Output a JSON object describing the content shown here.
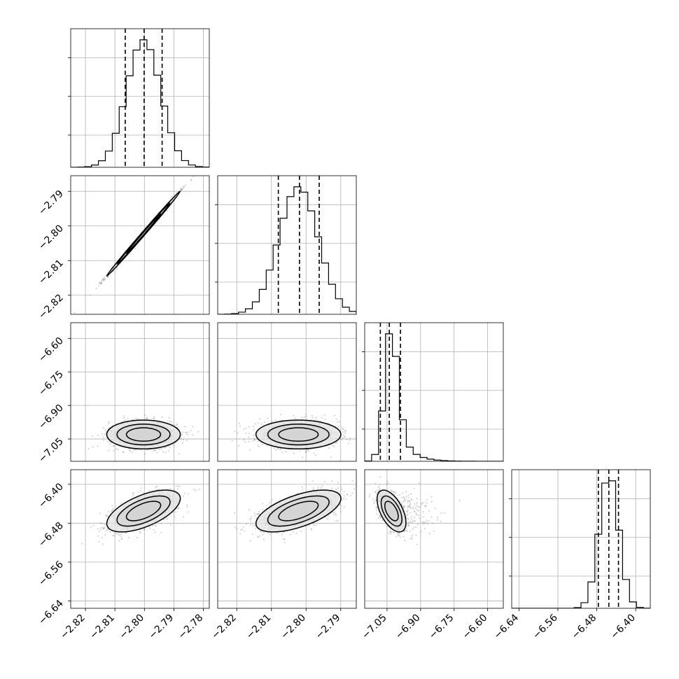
{
  "chart_data": {
    "type": "corner",
    "grid": true,
    "parameters": [
      {
        "axis_range": [
          -2.825,
          -2.778
        ],
        "ticks": [
          -2.82,
          -2.81,
          -2.8,
          -2.79,
          -2.78
        ],
        "tick_labels": [
          "−2.82",
          "−2.81",
          "−2.80",
          "−2.79",
          "−2.78"
        ],
        "mean": -2.8003,
        "sd": 0.0058,
        "quantiles": [
          -2.8065,
          -2.8001,
          -2.794
        ]
      },
      {
        "axis_range": [
          -2.8255,
          -2.7855
        ],
        "ticks": [
          -2.82,
          -2.81,
          -2.8,
          -2.79
        ],
        "tick_labels": [
          "−2.82",
          "−2.81",
          "−2.80",
          "−2.79"
        ],
        "mean": -2.8022,
        "sd": 0.0057,
        "quantiles": [
          -2.808,
          -2.8019,
          -2.7962
        ]
      },
      {
        "axis_range": [
          -7.15,
          -6.53
        ],
        "ticks": [
          -7.05,
          -6.9,
          -6.75,
          -6.6
        ],
        "tick_labels": [
          "−7.05",
          "−6.90",
          "−6.75",
          "−6.60"
        ],
        "mean": -7.03,
        "sd": 0.03,
        "quantiles": [
          -7.08,
          -7.04,
          -6.99
        ]
      },
      {
        "axis_range": [
          -6.655,
          -6.37
        ],
        "ticks": [
          -6.64,
          -6.56,
          -6.48,
          -6.4
        ],
        "tick_labels": [
          "−6.64",
          "−6.56",
          "−6.48",
          "−6.40"
        ],
        "mean": -6.455,
        "sd": 0.02,
        "quantiles": [
          -6.4768,
          -6.4553,
          -6.4354
        ]
      }
    ],
    "correlations": [
      {
        "i": 1,
        "j": 0,
        "rho": 0.998
      },
      {
        "i": 2,
        "j": 0,
        "rho": 0.0
      },
      {
        "i": 2,
        "j": 1,
        "rho": 0.0
      },
      {
        "i": 3,
        "j": 0,
        "rho": 0.6
      },
      {
        "i": 3,
        "j": 1,
        "rho": 0.6
      },
      {
        "i": 3,
        "j": 2,
        "rho": -0.55
      }
    ]
  }
}
